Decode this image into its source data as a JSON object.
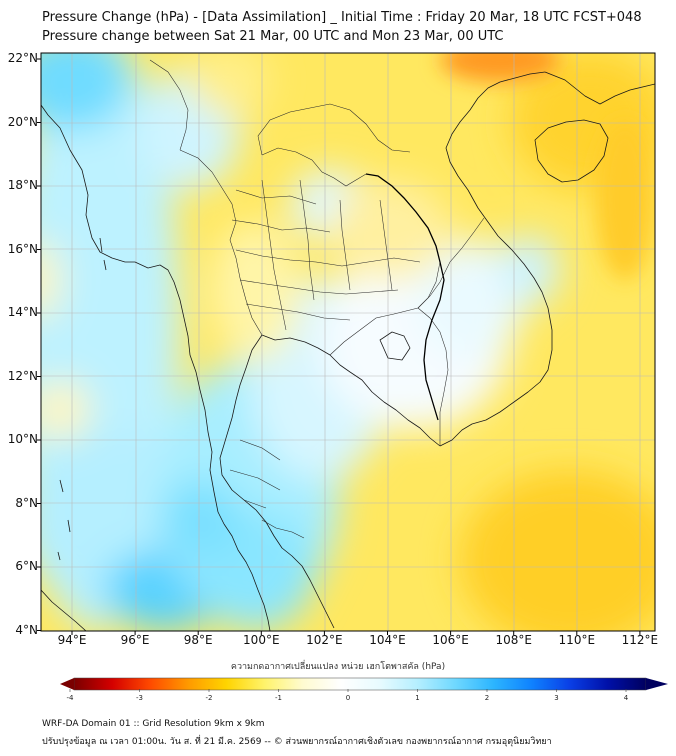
{
  "title_line1": "Pressure Change (hPa) - [Data Assimilation] _ Initial Time : Friday 20 Mar, 18 UTC FCST+048",
  "title_line2": "Pressure change between Sat 21 Mar, 00 UTC and Mon 23 Mar, 00 UTC",
  "lat_labels": [
    "22°N",
    "20°N",
    "18°N",
    "16°N",
    "14°N",
    "12°N",
    "10°N",
    "8°N",
    "6°N",
    "4°N"
  ],
  "lon_labels": [
    "94°E",
    "96°E",
    "98°E",
    "100°E",
    "102°E",
    "104°E",
    "106°E",
    "108°E",
    "110°E",
    "112°E"
  ],
  "colorbar": {
    "title": "ความกดอากาศเปลี่ยนแปลง หน่วย เฮกโตพาสคัล (hPa)",
    "ticks": [
      "-4",
      "-3",
      "-2",
      "-1",
      "0",
      "1",
      "2",
      "3",
      "4"
    ],
    "colors": [
      "#7a0000",
      "#d40000",
      "#ff4a00",
      "#ff9a00",
      "#ffd400",
      "#fff36b",
      "#fffbd0",
      "#ffffff",
      "#e8fbff",
      "#b5efff",
      "#6fd8ff",
      "#2cb5ff",
      "#0f82ff",
      "#0a3fe6",
      "#0010a8",
      "#00005f"
    ]
  },
  "footer_line1": "WRF-DA Domain 01 :: Grid Resolution 9km x 9km",
  "footer_line2": "ปรับปรุงข้อมูล ณ เวลา 01:00น. วัน ส. ที่ 21 มี.ค. 2569 -- © ส่วนพยากรณ์อากาศเชิงตัวเลข กองพยากรณ์อากาศ กรมอุตุนิยมวิทยา",
  "field_colors": {
    "blue_strong": "#3fd0ff",
    "blue_light": "#a8eeff",
    "pale": "#f0fbff",
    "yellow_light": "#fff39a",
    "yellow": "#ffe44a",
    "orange": "#ffc21a",
    "red": "#ff8c18"
  }
}
